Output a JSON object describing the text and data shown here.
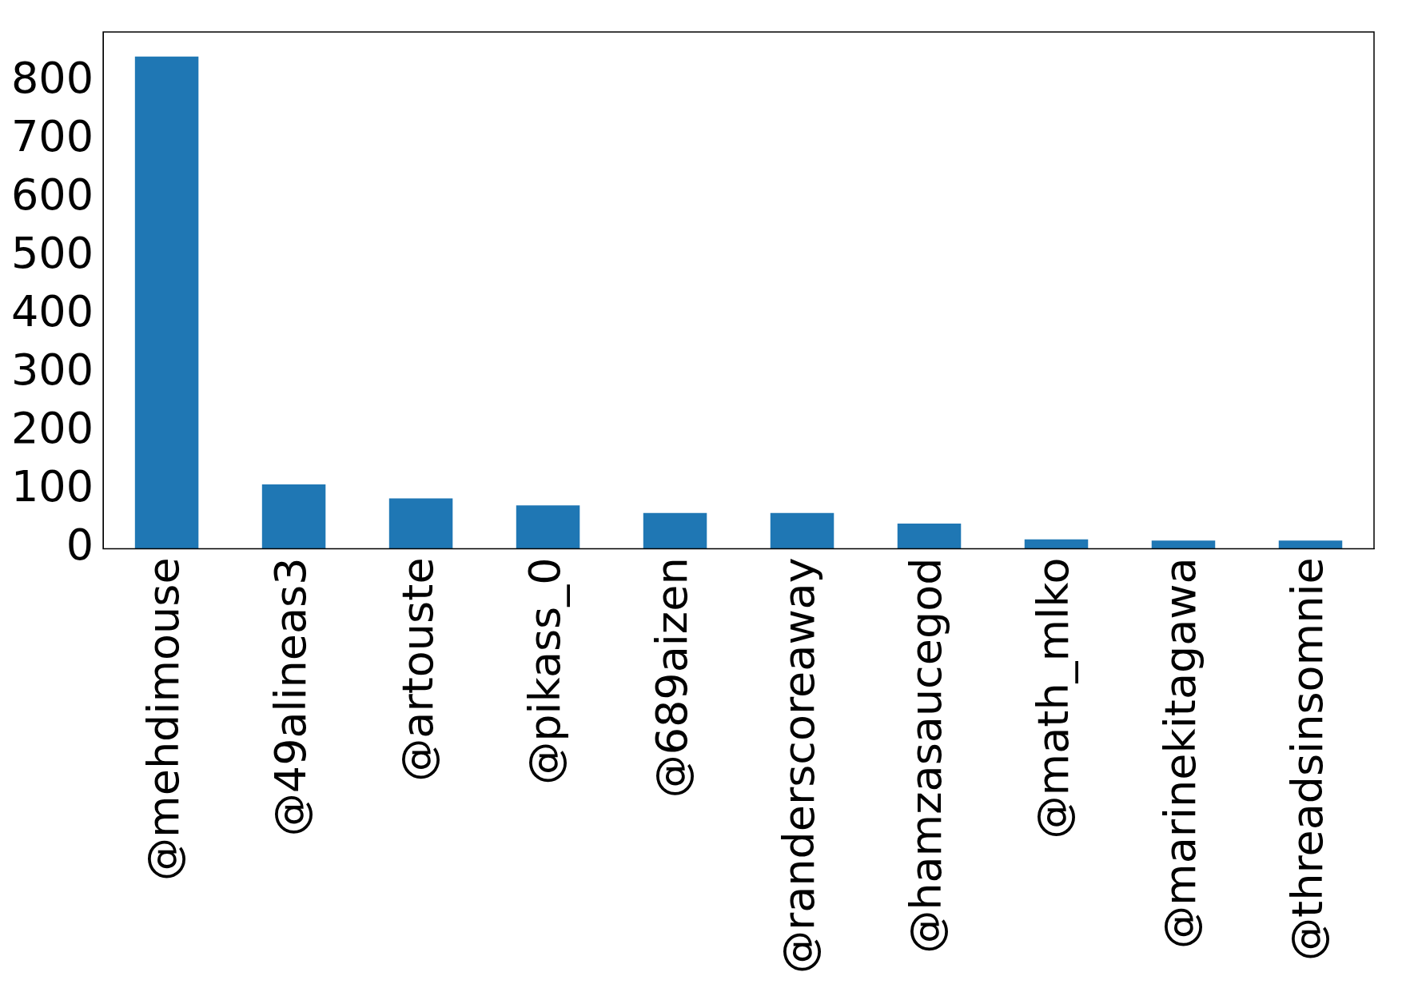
{
  "chart_data": {
    "type": "bar",
    "categories": [
      "@mehdimouse",
      "@49alineas3",
      "@artouste",
      "@pikass_0",
      "@689aizen",
      "@randerscoreaway",
      "@hamzasaucegod",
      "@math_mlko",
      "@marinekitagawa",
      "@threadsinsomnie"
    ],
    "values": [
      843,
      110,
      86,
      74,
      61,
      61,
      43,
      16,
      14,
      14
    ],
    "color": "#1f77b4",
    "ylim": [
      0,
      885
    ],
    "yticks": [
      0,
      100,
      200,
      300,
      400,
      500,
      600,
      700,
      800
    ],
    "grid": false,
    "legend": false
  }
}
